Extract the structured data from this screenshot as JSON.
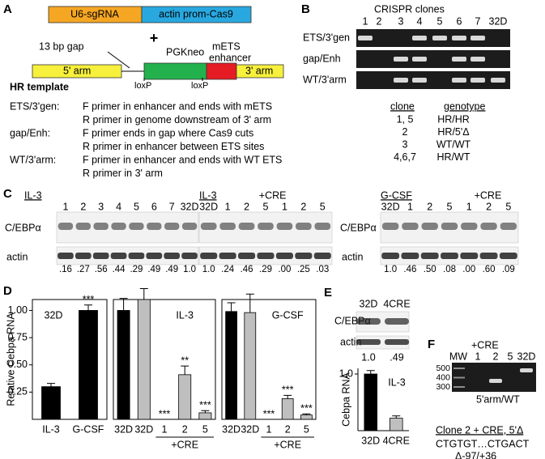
{
  "panel_a": {
    "label": "A",
    "box1": "U6-sgRNA",
    "box2": "actin prom-Cas9",
    "plus": "+",
    "gap": "13 bp gap",
    "pgkneo": "PGKneo",
    "enh1": "mETS",
    "enh2": "enhancer",
    "arm5": "5' arm",
    "arm3": "3' arm",
    "loxp": [
      "loxP",
      "loxP"
    ],
    "hr": "HR template",
    "primers": [
      {
        "name": "ETS/3'gen:",
        "lines": [
          "F primer in enhancer and ends with mETS",
          "R primer in genome downstream of 3' arm"
        ]
      },
      {
        "name": "gap/Enh:",
        "lines": [
          "F primer ends in gap where Cas9 cuts",
          "R primer in enhancer between ETS sites"
        ]
      },
      {
        "name": "WT/3'arm:",
        "lines": [
          "F primer in enhancer and ends with WT ETS",
          "R primer in 3' arm"
        ]
      }
    ]
  },
  "panel_b": {
    "label": "B",
    "title": "CRISPR clones",
    "lanes": [
      "1",
      "2",
      "3",
      "4",
      "5",
      "6",
      "7",
      "32D"
    ],
    "rows": [
      "ETS/3'gen",
      "gap/Enh",
      "WT/3'arm"
    ],
    "table": {
      "header": [
        "clone",
        "genotype"
      ],
      "rows": [
        [
          "1, 5",
          "HR/HR"
        ],
        [
          "2",
          "HR/5'Δ"
        ],
        [
          "3",
          "WT/WT"
        ],
        [
          "4,6,7",
          "HR/WT"
        ]
      ]
    }
  },
  "panel_c": {
    "label": "C",
    "rows": [
      "C/EBPα",
      "actin"
    ],
    "blots": [
      {
        "condition": "IL-3",
        "lanes": [
          "1",
          "2",
          "3",
          "4",
          "5",
          "6",
          "7",
          "32D"
        ],
        "quant": [
          ".16",
          ".27",
          ".56",
          ".44",
          ".29",
          ".49",
          ".49",
          "1.0"
        ]
      },
      {
        "condition": "IL-3",
        "treatment": "+CRE",
        "lanes": [
          "32D",
          "1",
          "2",
          "5",
          "1",
          "2",
          "5"
        ],
        "quant": [
          "1.0",
          ".24",
          ".46",
          ".29",
          ".00",
          ".25",
          ".03"
        ]
      },
      {
        "condition": "G-CSF",
        "treatment": "+CRE",
        "lanes": [
          "32D",
          "1",
          "2",
          "5",
          "1",
          "2",
          "5"
        ],
        "quant": [
          "1.0",
          ".46",
          ".50",
          ".08",
          ".00",
          ".60",
          ".09"
        ]
      }
    ]
  },
  "panel_d": {
    "label": "D"
  },
  "chart_data": [
    {
      "type": "bar",
      "title": "32D",
      "ylabel": "Relative Cebpa RNA",
      "categories": [
        "IL-3",
        "G-CSF"
      ],
      "values": [
        0.3,
        1.0
      ],
      "errors": [
        0.03,
        0.05
      ],
      "stars": [
        null,
        "***"
      ],
      "colors": [
        "#000000",
        "#000000"
      ],
      "ylim": [
        0,
        1.1
      ],
      "yticks": [
        {
          "value": 0.25,
          "label": "0.25"
        },
        {
          "value": 0.5,
          "label": "0.50"
        },
        {
          "value": 0.75,
          "label": "0.75"
        },
        {
          "value": 1,
          "label": "1.00"
        }
      ],
      "frame": true
    },
    {
      "type": "bar",
      "title": "IL-3",
      "categories": [
        "32D",
        "32D",
        "1",
        "2",
        "5"
      ],
      "group_label": "+CRE",
      "values": [
        1.0,
        1.1,
        0,
        0.41,
        0.06
      ],
      "errors": [
        0.11,
        0.1,
        0,
        0.08,
        0.02
      ],
      "stars": [
        null,
        null,
        "***",
        "**",
        "***"
      ],
      "colors": [
        "#000000",
        "#bfbfbf",
        "#bfbfbf",
        "#bfbfbf",
        "#bfbfbf"
      ],
      "ylim": [
        0,
        1.1
      ],
      "frame": true
    },
    {
      "type": "bar",
      "title": "G-CSF",
      "categories": [
        "32D",
        "32D",
        "1",
        "2",
        "5"
      ],
      "group_label": "+CRE",
      "values": [
        0.99,
        0.98,
        0,
        0.19,
        0.04
      ],
      "errors": [
        0.08,
        0.17,
        0,
        0.03,
        0.01
      ],
      "stars": [
        null,
        null,
        "***",
        "***",
        "***"
      ],
      "colors": [
        "#000000",
        "#bfbfbf",
        "#bfbfbf",
        "#bfbfbf",
        "#bfbfbf"
      ],
      "ylim": [
        0,
        1.1
      ],
      "frame": true
    },
    {
      "type": "bar",
      "title": "IL-3",
      "ylabel": "Cebpa RNA",
      "categories": [
        "32D",
        "4CRE"
      ],
      "values": [
        1.0,
        0.22
      ],
      "errors": [
        0.06,
        0.04
      ],
      "colors": [
        "#000000",
        "#bfbfbf"
      ],
      "ylim": [
        0,
        1.1
      ],
      "yticks": [
        {
          "value": 1,
          "label": "1.0"
        }
      ],
      "frame": false
    }
  ],
  "panel_e": {
    "label": "E",
    "lanes": [
      "32D",
      "4CRE"
    ],
    "rows": [
      "C/EBPα",
      "actin"
    ],
    "quant": [
      "1.0",
      ".49"
    ]
  },
  "panel_f": {
    "label": "F",
    "treatment": "+CRE",
    "lanes": [
      "MW",
      "1",
      "2",
      "5",
      "32D"
    ],
    "markers": [
      "500",
      "400",
      "300"
    ],
    "caption": "5'arm/WT",
    "title": "Clone 2 + CRE, 5'Δ",
    "sequence": "CTGTGT…CTGACT",
    "deletion": "Δ-97/+36"
  }
}
